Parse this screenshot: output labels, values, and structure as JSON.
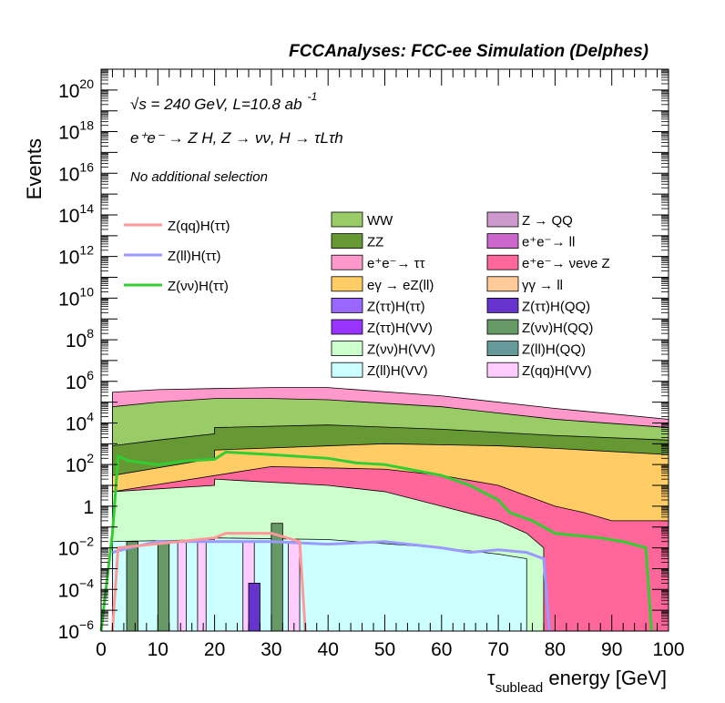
{
  "header": {
    "title": "FCCAnalyses: FCC-ee Simulation (Delphes)"
  },
  "annotations": {
    "energy_prefix": "√s = 240 GeV, L=10.8 ab",
    "lumi_exponent": "-1",
    "process": "e⁺e⁻ → Z H, Z → νν, H → τLτh",
    "selection": "No additional selection"
  },
  "axes": {
    "ylabel": "Events",
    "xlabel_tau": "τ",
    "xlabel_sub": "sublead",
    "xlabel_rest": " energy [GeV]"
  },
  "chart_data": {
    "type": "bar",
    "title": "FCCAnalyses: FCC-ee Simulation (Delphes)",
    "xlabel": "τsublead energy [GeV]",
    "ylabel": "Events",
    "xlim": [
      0,
      100
    ],
    "ylim": [
      1e-06,
      1e+21
    ],
    "yscale": "log",
    "grid": false,
    "legend_placement": "upper-middle",
    "x_ticks": [
      0,
      10,
      20,
      30,
      40,
      50,
      60,
      70,
      80,
      90,
      100
    ],
    "y_ticks": [
      {
        "value": 1e-06,
        "base": "10",
        "exp": "−6"
      },
      {
        "value": 0.0001,
        "base": "10",
        "exp": "−4"
      },
      {
        "value": 0.01,
        "base": "10",
        "exp": "−2"
      },
      {
        "value": 1,
        "base": "1",
        "exp": ""
      },
      {
        "value": 100.0,
        "base": "10",
        "exp": "2"
      },
      {
        "value": 10000.0,
        "base": "10",
        "exp": "4"
      },
      {
        "value": 1000000.0,
        "base": "10",
        "exp": "6"
      },
      {
        "value": 100000000.0,
        "base": "10",
        "exp": "8"
      },
      {
        "value": 10000000000.0,
        "base": "10",
        "exp": "10"
      },
      {
        "value": 1000000000000.0,
        "base": "10",
        "exp": "12"
      },
      {
        "value": 100000000000000.0,
        "base": "10",
        "exp": "14"
      },
      {
        "value": 1e+16,
        "base": "10",
        "exp": "16"
      },
      {
        "value": 1e+18,
        "base": "10",
        "exp": "18"
      },
      {
        "value": 1e+20,
        "base": "10",
        "exp": "20"
      }
    ],
    "stack_layers": [
      {
        "name": "Z(ll)H(VV)",
        "color": "#ccffff",
        "x": [
          2,
          20,
          20,
          40,
          60,
          70,
          75,
          75
        ],
        "y": [
          0.02,
          0.025,
          0.03,
          0.025,
          0.01,
          0.005,
          0.003,
          1e-06
        ]
      },
      {
        "name": "Z(νν)H(VV)",
        "color": "#ccffcc",
        "x": [
          2,
          20,
          20,
          40,
          50,
          60,
          70,
          75,
          78,
          78
        ],
        "y": [
          5,
          10,
          20,
          10,
          5,
          1,
          0.2,
          0.05,
          0.01,
          1e-06
        ]
      },
      {
        "name": "e⁺e⁻ → νeνe Z",
        "color": "#ff6699",
        "x": [
          2,
          30,
          50,
          60,
          70,
          80,
          85,
          90,
          100
        ],
        "y": [
          5,
          80,
          60,
          30,
          10,
          1,
          0.5,
          0.2,
          0.2
        ]
      },
      {
        "name": "eγ → eZ(ll)",
        "color": "#ffcc66",
        "x": [
          2,
          20,
          20,
          50,
          70,
          80,
          100
        ],
        "y": [
          30,
          200,
          500,
          1000,
          800,
          600,
          300
        ]
      },
      {
        "name": "ZZ",
        "color": "#669933",
        "x": [
          2,
          10,
          20,
          20,
          40,
          60,
          80,
          100
        ],
        "y": [
          800,
          1500,
          3000,
          6000,
          8000,
          5000,
          2500,
          1500
        ]
      },
      {
        "name": "WW",
        "color": "#99cc66",
        "x": [
          2,
          10,
          20,
          30,
          40,
          60,
          80,
          100
        ],
        "y": [
          60000,
          100000,
          150000,
          150000,
          130000,
          60000,
          15000,
          6000
        ]
      },
      {
        "name": "e⁺e⁻ → ττ",
        "color": "#ff99cc",
        "x": [
          2,
          10,
          20,
          30,
          40,
          60,
          80,
          100
        ],
        "y": [
          300000,
          400000,
          450000,
          500000,
          500000,
          200000,
          50000,
          15000
        ]
      }
    ],
    "overlay_lines": [
      {
        "name": "Z(νν)H(ττ)",
        "color": "#33cc33",
        "x": [
          0,
          2,
          3,
          5,
          10,
          15,
          20,
          22,
          30,
          40,
          45,
          50,
          60,
          65,
          70,
          72,
          76,
          80,
          88,
          92,
          96,
          97
        ],
        "y": [
          1e-06,
          0.05,
          250,
          150,
          100,
          150,
          180,
          400,
          300,
          200,
          120,
          100,
          30,
          10,
          2,
          0.5,
          0.2,
          0.05,
          0.03,
          0.02,
          0.01,
          1e-06
        ]
      },
      {
        "name": "Z(ll)H(ττ)",
        "color": "#9999ff",
        "x": [
          2,
          5,
          10,
          20,
          30,
          40,
          50,
          60,
          65,
          70,
          75,
          78,
          79
        ],
        "y": [
          0.006,
          0.01,
          0.02,
          0.02,
          0.02,
          0.015,
          0.02,
          0.01,
          0.006,
          0.008,
          0.006,
          0.003,
          1e-06
        ]
      },
      {
        "name": "Z(qq)H(ττ)",
        "color": "#ff9999",
        "x": [
          2,
          3,
          20,
          22,
          25,
          30,
          35,
          36
        ],
        "y": [
          1e-06,
          0.01,
          0.03,
          0.05,
          0.05,
          0.05,
          0.02,
          1e-06
        ]
      }
    ],
    "spikes": [
      {
        "series": "Z(νν)H(QQ)",
        "color": "#669966",
        "x0": 4.5,
        "x1": 6.5,
        "y": 0.02
      },
      {
        "series": "Z(νν)H(QQ)",
        "color": "#669966",
        "x0": 10,
        "x1": 12,
        "y": 0.02
      },
      {
        "series": "Z(νν)H(QQ)",
        "color": "#669966",
        "x0": 30,
        "x1": 32,
        "y": 0.15
      },
      {
        "series": "Z(qq)H(VV)",
        "color": "#ffccff",
        "x0": 13.5,
        "x1": 15,
        "y": 0.02
      },
      {
        "series": "Z(qq)H(VV)",
        "color": "#ffccff",
        "x0": 17,
        "x1": 18.5,
        "y": 0.02
      },
      {
        "series": "Z(qq)H(VV)",
        "color": "#ffccff",
        "x0": 25,
        "x1": 27,
        "y": 0.02
      },
      {
        "series": "Z(qq)H(VV)",
        "color": "#ffccff",
        "x0": 33,
        "x1": 35,
        "y": 0.02
      },
      {
        "series": "Z(ττ)H(QQ)",
        "color": "#6633cc",
        "x0": 26,
        "x1": 28,
        "y": 0.0002
      }
    ],
    "legend_lines": [
      {
        "label": "Z(qq)H(ττ)",
        "color": "#ff9999"
      },
      {
        "label": "Z(ll)H(ττ)",
        "color": "#9999ff"
      },
      {
        "label": "Z(νν)H(ττ)",
        "color": "#33cc33"
      }
    ],
    "legend_boxes_left": [
      {
        "label": "WW",
        "color": "#99cc66"
      },
      {
        "label": "ZZ",
        "color": "#669933"
      },
      {
        "label": "e⁺e⁻→ ττ",
        "color": "#ff99cc"
      },
      {
        "label": "eγ → eZ(ll)",
        "color": "#ffcc66"
      },
      {
        "label": "Z(ττ)H(ττ)",
        "color": "#9966ff"
      },
      {
        "label": "Z(ττ)H(VV)",
        "color": "#9933ff"
      },
      {
        "label": "Z(νν)H(VV)",
        "color": "#ccffcc"
      },
      {
        "label": "Z(ll)H(VV)",
        "color": "#ccffff"
      }
    ],
    "legend_boxes_right": [
      {
        "label": "Z → QQ",
        "color": "#cc99cc"
      },
      {
        "label": "e⁺e⁻→ ll",
        "color": "#cc66cc"
      },
      {
        "label": "e⁺e⁻→ νeνe Z",
        "color": "#ff6699"
      },
      {
        "label": "γγ → ll",
        "color": "#ffcc99"
      },
      {
        "label": "Z(ττ)H(QQ)",
        "color": "#6633cc"
      },
      {
        "label": "Z(νν)H(QQ)",
        "color": "#669966"
      },
      {
        "label": "Z(ll)H(QQ)",
        "color": "#669999"
      },
      {
        "label": "Z(qq)H(VV)",
        "color": "#ffccff"
      }
    ]
  }
}
